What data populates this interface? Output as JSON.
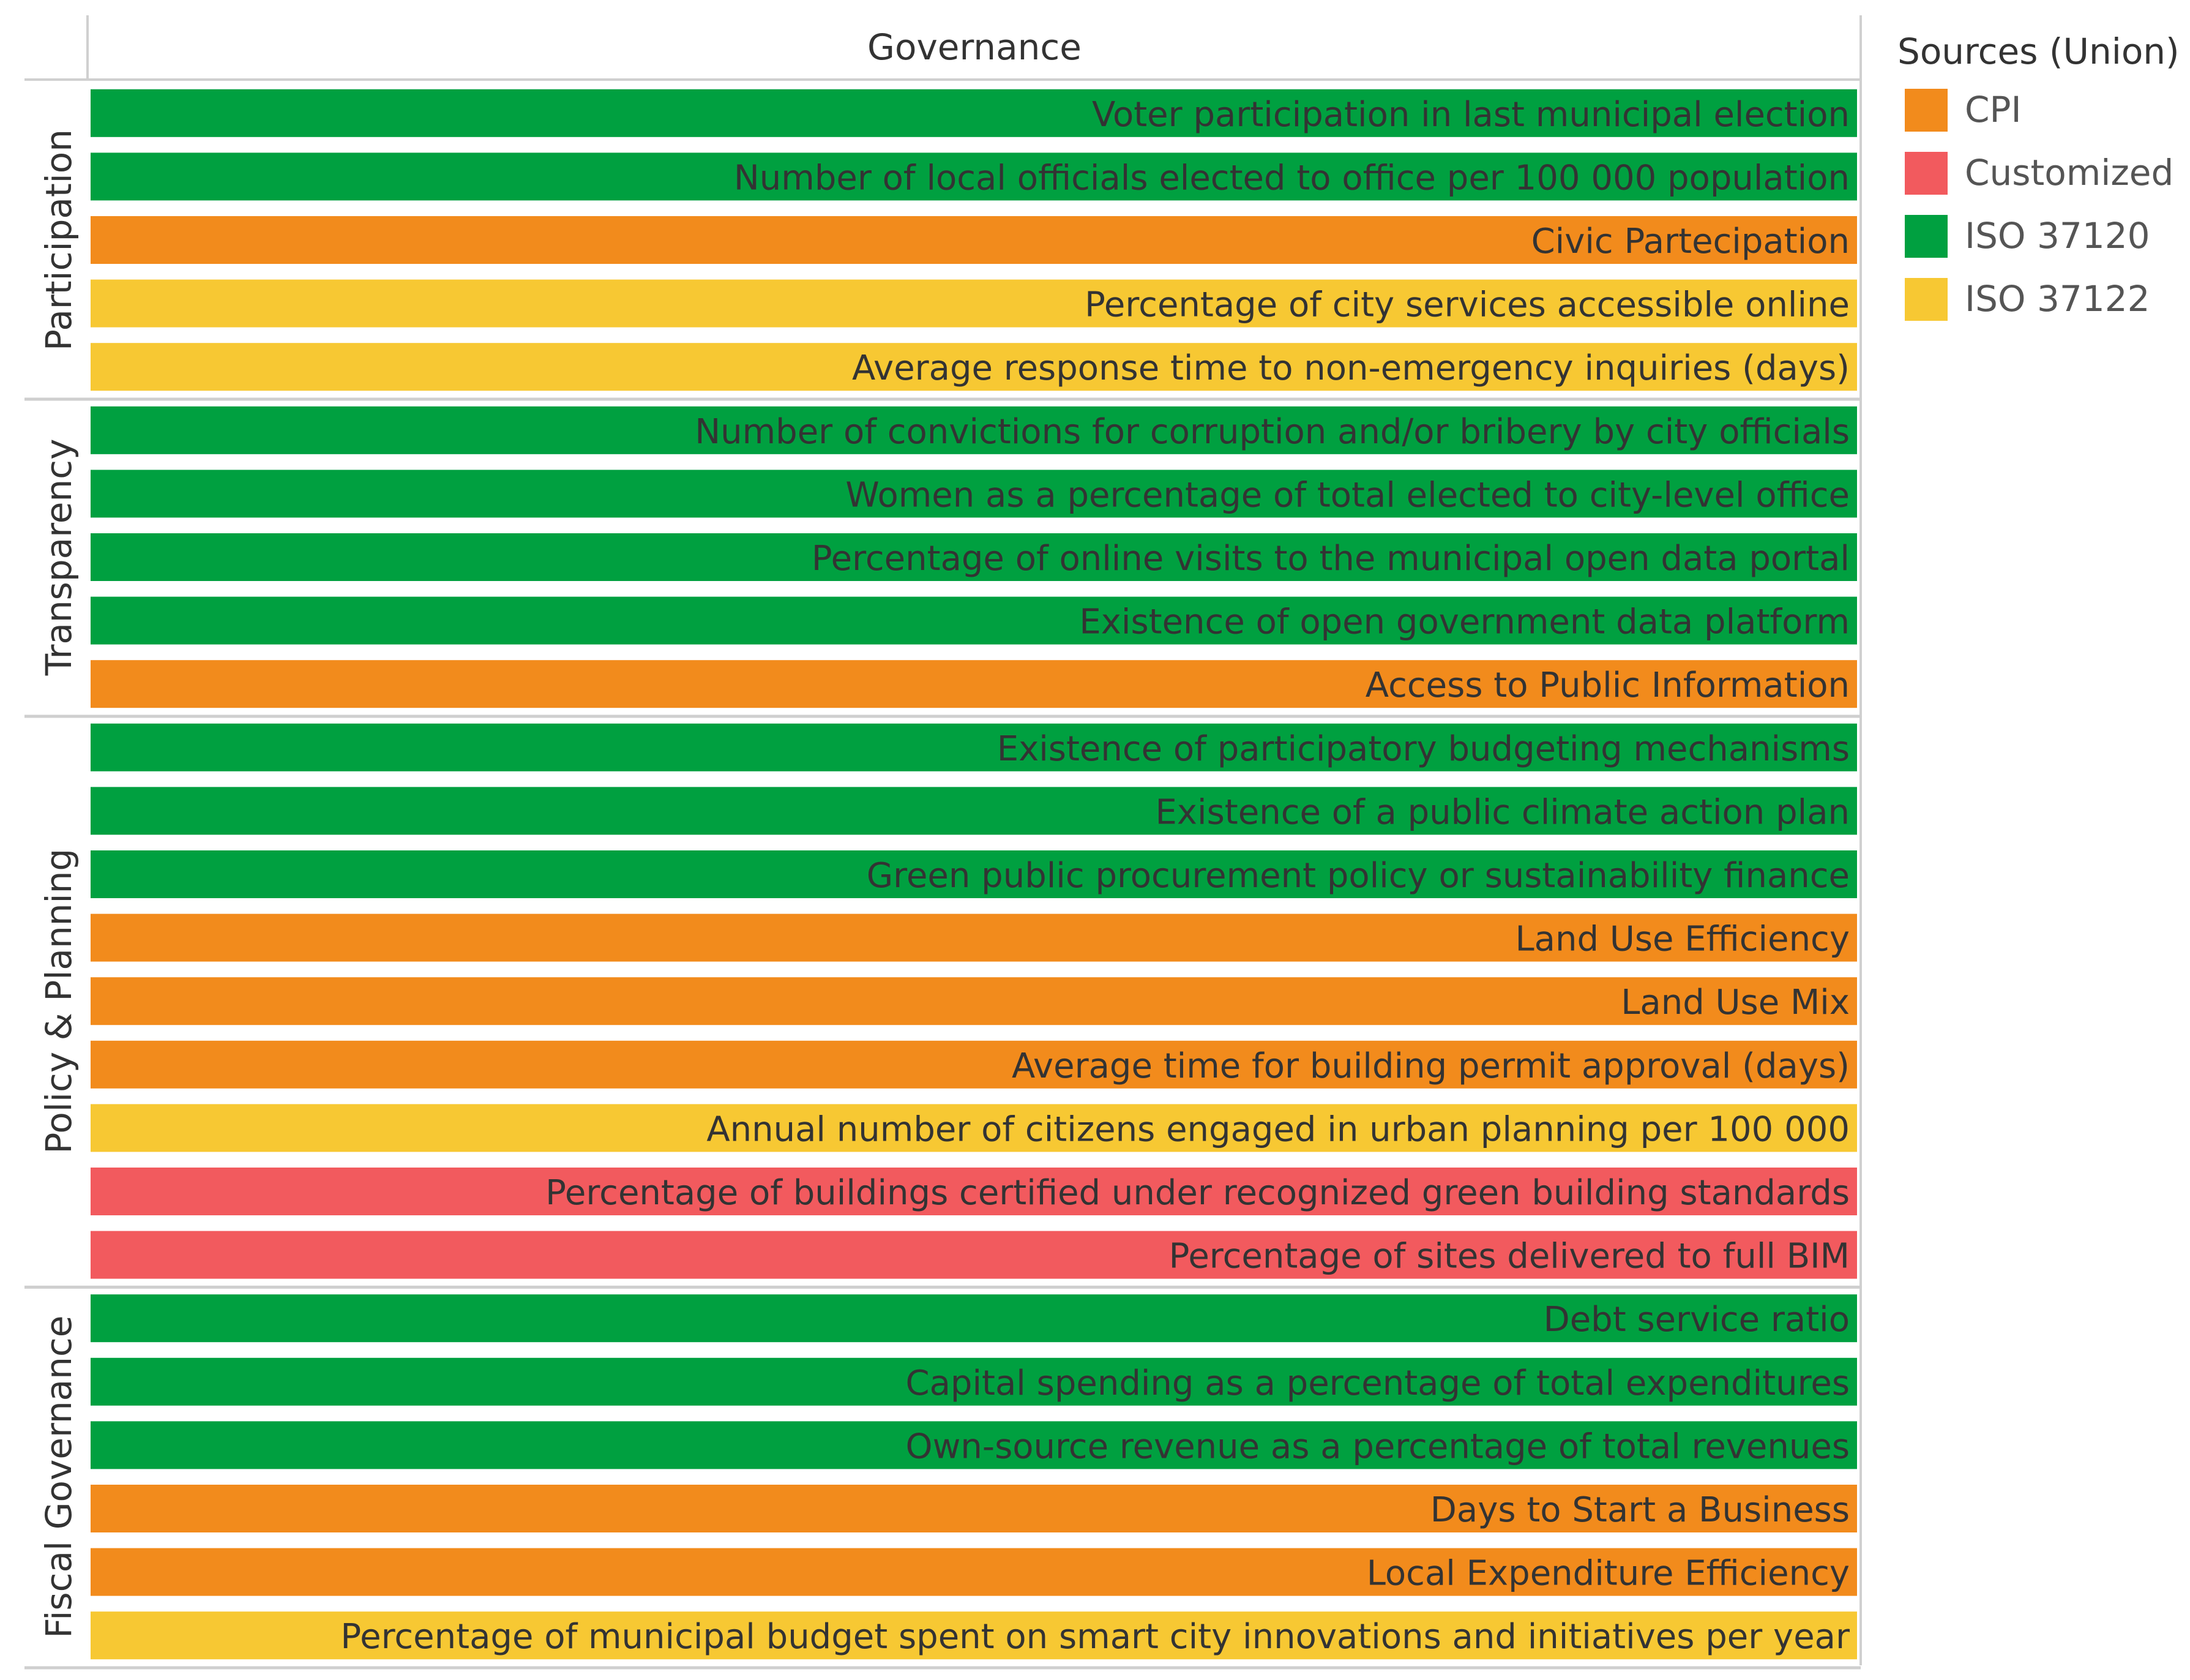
{
  "chart_data": {
    "type": "bar",
    "column_header": "Governance",
    "legend": {
      "title": "Sources (Union)",
      "entries": [
        {
          "name": "CPI",
          "color": "#f28b1c"
        },
        {
          "name": "Customized",
          "color": "#f25a5e"
        },
        {
          "name": "ISO 37120",
          "color": "#00a040"
        },
        {
          "name": "ISO 37122",
          "color": "#f7c833"
        }
      ]
    },
    "groups": [
      {
        "name": "Participation",
        "rows": [
          {
            "label": "Voter participation in last municipal election",
            "source": "ISO 37120"
          },
          {
            "label": "Number of local officials elected to office per 100 000 population",
            "source": "ISO 37120"
          },
          {
            "label": "Civic Partecipation",
            "source": "CPI"
          },
          {
            "label": "Percentage of city services accessible online",
            "source": "ISO 37122"
          },
          {
            "label": "Average response time to non-emergency inquiries (days)",
            "source": "ISO 37122"
          }
        ]
      },
      {
        "name": "Transparency",
        "rows": [
          {
            "label": "Number of convictions for corruption and/or bribery by city officials",
            "source": "ISO 37120"
          },
          {
            "label": "Women as a percentage of total elected to city-level office",
            "source": "ISO 37120"
          },
          {
            "label": "Percentage of online visits to the municipal open data portal",
            "source": "ISO 37120"
          },
          {
            "label": "Existence of open government data platform",
            "source": "ISO 37120"
          },
          {
            "label": "Access to Public Information",
            "source": "CPI"
          }
        ]
      },
      {
        "name": "Policy & Planning",
        "rows": [
          {
            "label": "Existence of participatory budgeting mechanisms",
            "source": "ISO 37120"
          },
          {
            "label": "Existence of a public climate action plan",
            "source": "ISO 37120"
          },
          {
            "label": "Green public procurement policy or sustainability finance",
            "source": "ISO 37120"
          },
          {
            "label": "Land Use Efficiency",
            "source": "CPI"
          },
          {
            "label": "Land Use Mix",
            "source": "CPI"
          },
          {
            "label": "Average time for building permit approval (days)",
            "source": "CPI"
          },
          {
            "label": "Annual number of citizens engaged in urban planning per 100 000",
            "source": "ISO 37122"
          },
          {
            "label": "Percentage of buildings certified under recognized green building standards",
            "source": "Customized"
          },
          {
            "label": "Percentage of sites delivered to full BIM",
            "source": "Customized"
          }
        ]
      },
      {
        "name": "Fiscal Governance",
        "rows": [
          {
            "label": "Debt service ratio",
            "source": "ISO 37120"
          },
          {
            "label": "Capital spending as a percentage of total expenditures",
            "source": "ISO 37120"
          },
          {
            "label": "Own-source revenue as a percentage of total revenues",
            "source": "ISO 37120"
          },
          {
            "label": "Days to Start a Business",
            "source": "CPI"
          },
          {
            "label": "Local Expenditure Efficiency",
            "source": "CPI"
          },
          {
            "label": "Percentage of municipal budget spent on smart city innovations and initiatives per year",
            "source": "ISO 37122"
          }
        ]
      }
    ]
  }
}
